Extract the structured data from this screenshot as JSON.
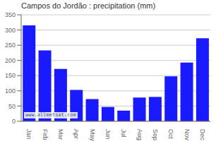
{
  "chart_data": {
    "type": "bar",
    "title": "Campos do Jordão : precipitation (mm)",
    "categories": [
      "Jan",
      "Feb",
      "Mar",
      "Apr",
      "May",
      "Jun",
      "Jul",
      "Aug",
      "Sep",
      "Oct",
      "Nov",
      "Dec"
    ],
    "values": [
      315,
      233,
      172,
      103,
      73,
      47,
      35,
      78,
      80,
      148,
      193,
      273
    ],
    "color": "#1a1aff",
    "ylim": [
      0,
      350
    ],
    "yticks": [
      0,
      50,
      100,
      150,
      200,
      250,
      300,
      350
    ],
    "grid": true,
    "annotations": [
      "www.allmetsat.com"
    ]
  }
}
